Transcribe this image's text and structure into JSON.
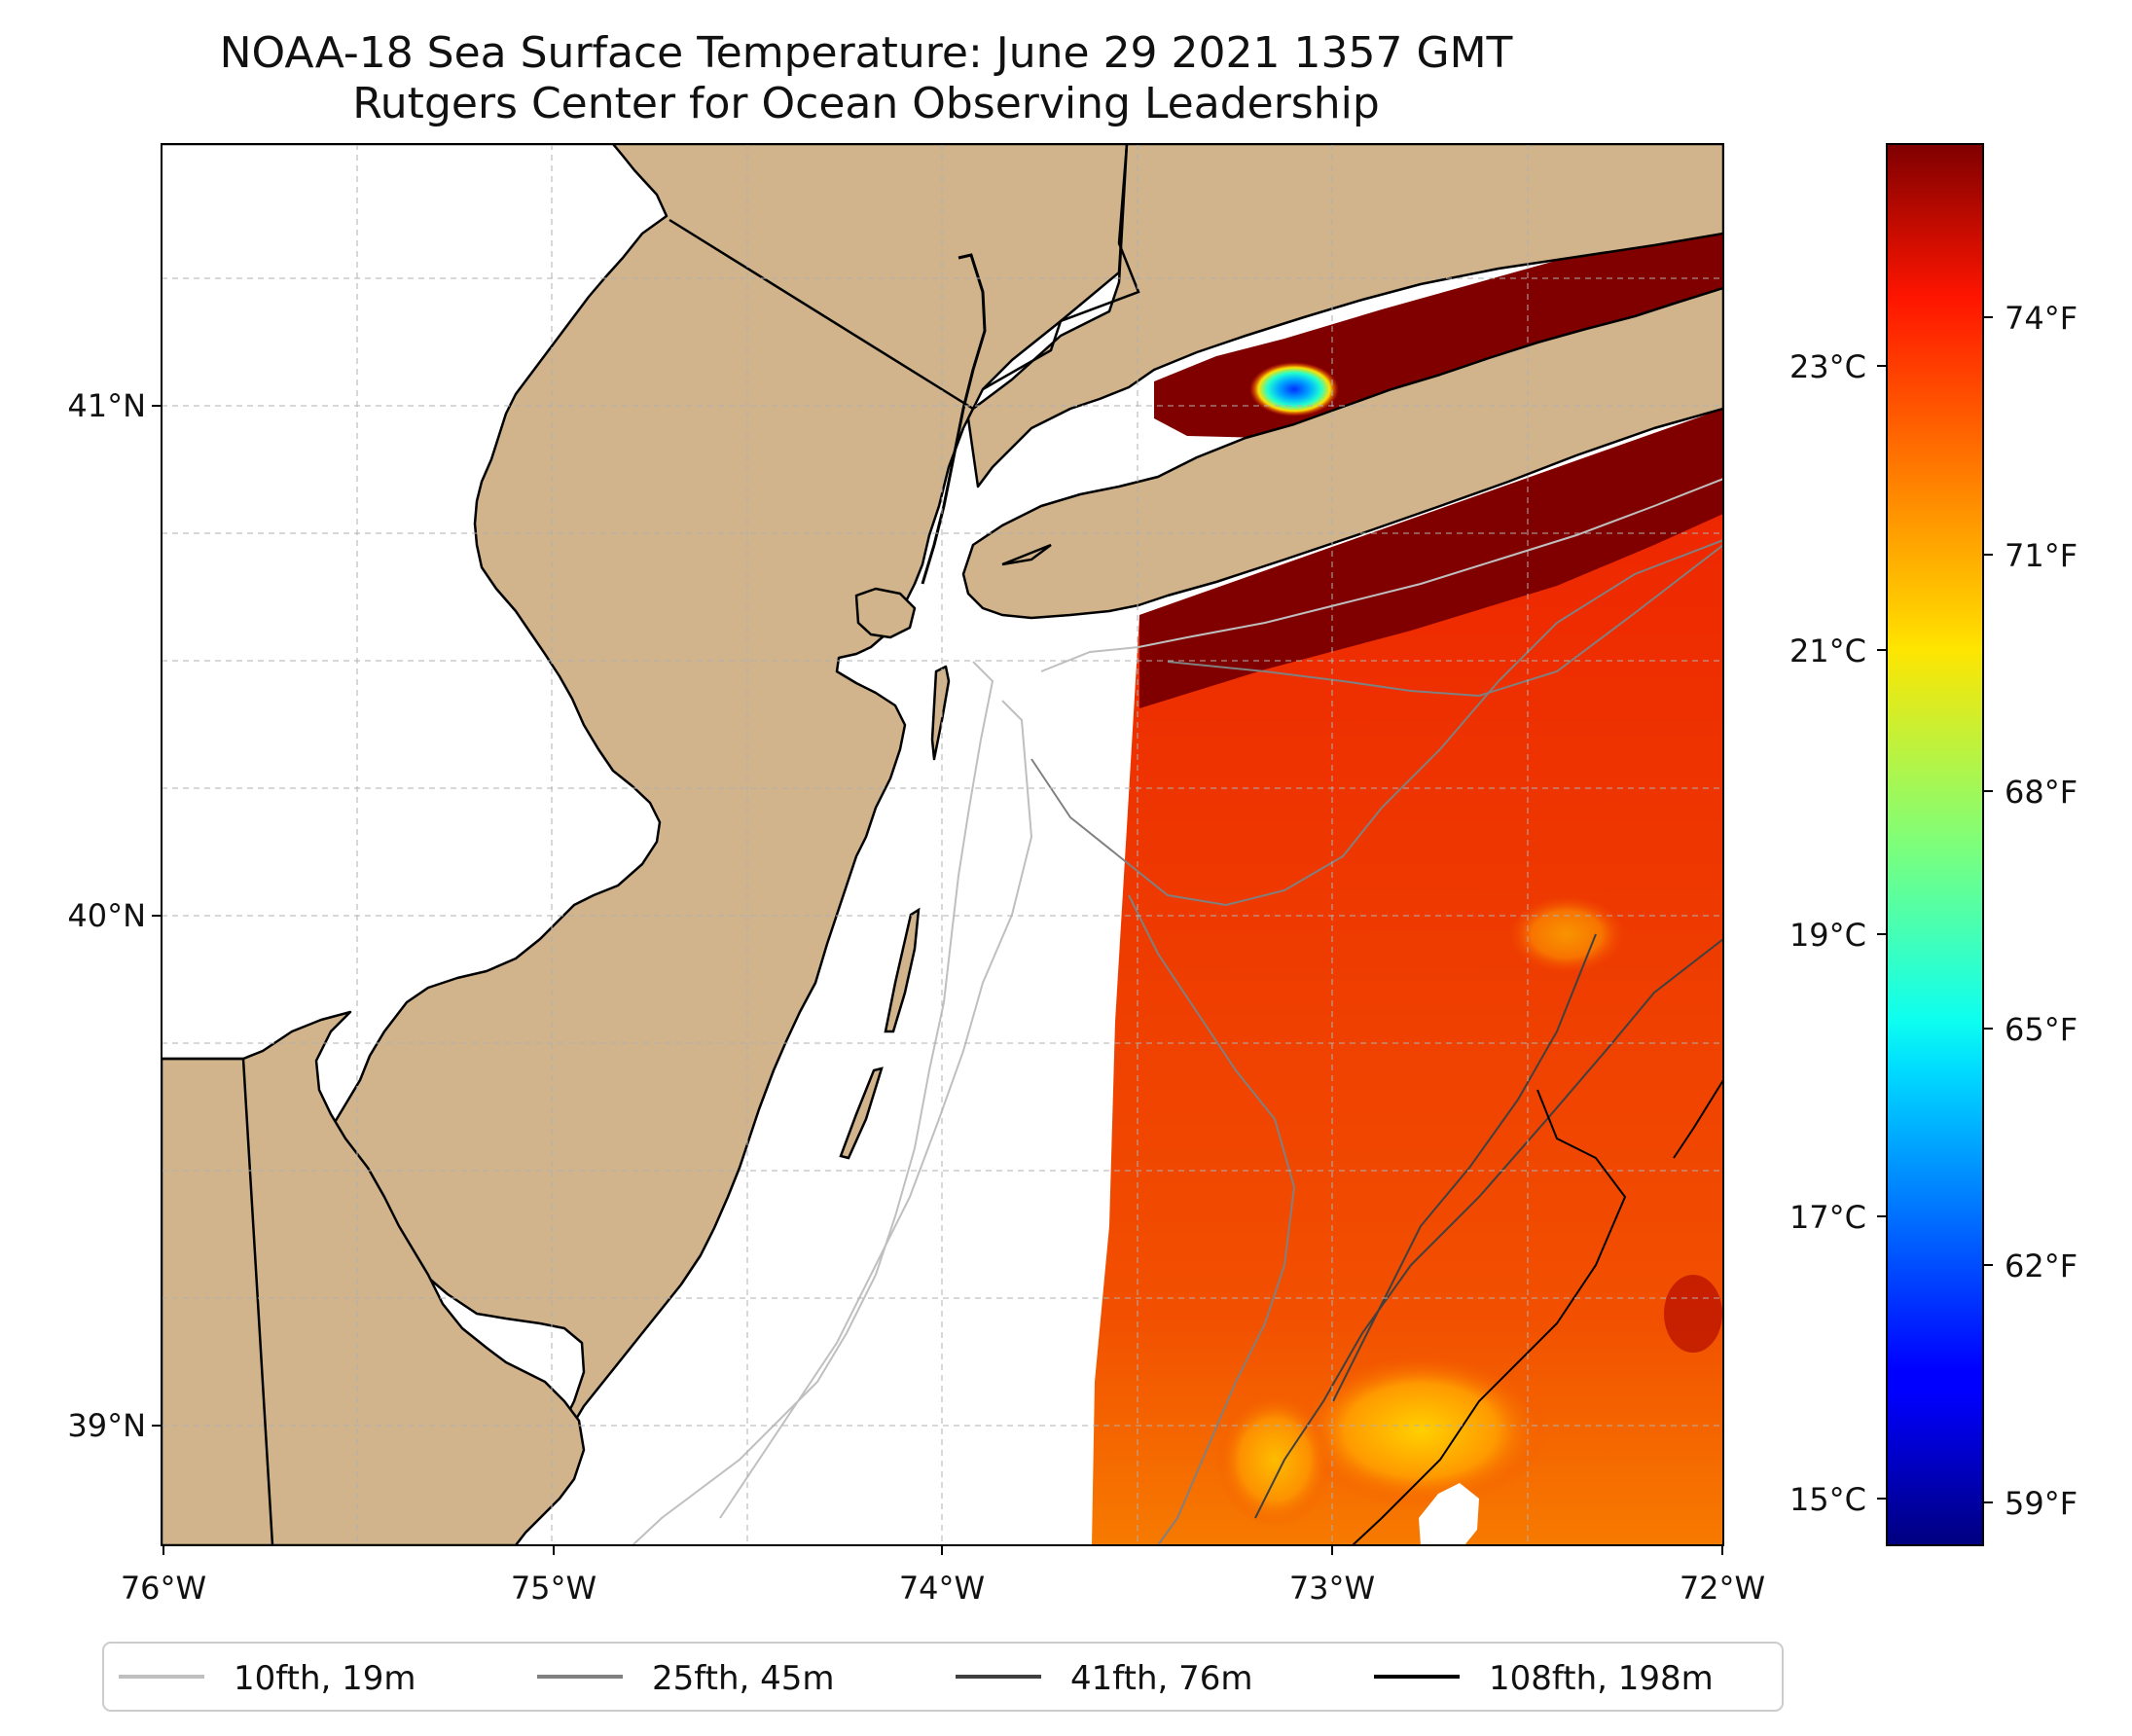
{
  "title": {
    "line1": "NOAA-18 Sea Surface Temperature: June 29 2021 1357 GMT",
    "line2": "Rutgers Center for Ocean Observing Leadership"
  },
  "map": {
    "lon_range": [
      -76,
      -72
    ],
    "lat_range": [
      38.75,
      41.55
    ],
    "lon_ticks": [
      "76°W",
      "75°W",
      "74°W",
      "73°W",
      "72°W"
    ],
    "lat_ticks": [
      "41°N",
      "40°N",
      "39°N"
    ],
    "gridlines": "dashed",
    "land_color": "#d2b48c",
    "water_color": "#ffffff",
    "coastline_color": "#000000"
  },
  "colorbar": {
    "colormap": "jet",
    "range_f": [
      57.5,
      76.5
    ],
    "fahrenheit_ticks": [
      "74°F",
      "71°F",
      "68°F",
      "65°F",
      "62°F",
      "59°F"
    ],
    "celsius_ticks": [
      "23°C",
      "21°C",
      "19°C",
      "17°C",
      "15°C"
    ]
  },
  "legend": {
    "placement": "bottom",
    "items": [
      {
        "label": "10fth, 19m",
        "color": "#bfbfbf"
      },
      {
        "label": "25fth, 45m",
        "color": "#808080"
      },
      {
        "label": "41fth, 76m",
        "color": "#404040"
      },
      {
        "label": "108fth, 198m",
        "color": "#000000"
      }
    ]
  }
}
